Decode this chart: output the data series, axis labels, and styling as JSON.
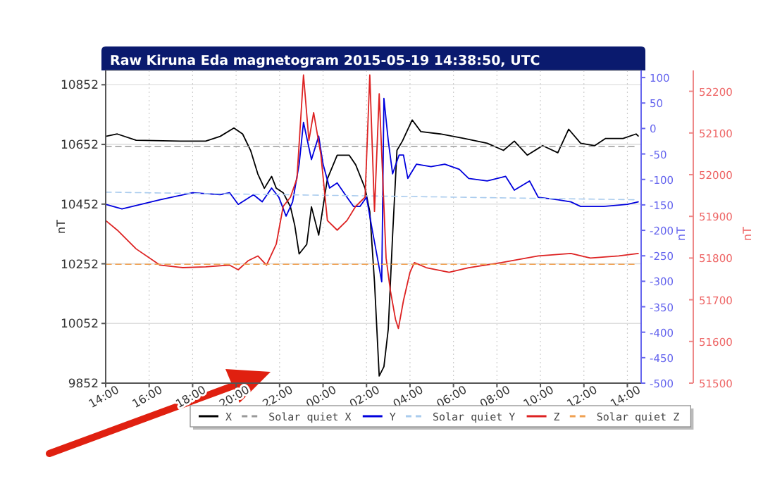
{
  "chart_data": {
    "type": "line",
    "title": "Raw Kiruna Eda magnetogram 2015-05-19 14:38:50, UTC",
    "ylabel": "nT",
    "y2label": "nT",
    "y3label": "nT",
    "xlim": [
      "2015-05-18T14:00",
      "2015-05-19T14:38"
    ],
    "xticks": [
      {
        "value": "2015-05-18T14:00",
        "label": "14:00"
      },
      {
        "value": "2015-05-18T16:00",
        "label": "16:00"
      },
      {
        "value": "2015-05-18T18:00",
        "label": "18:00"
      },
      {
        "value": "2015-05-18T20:00",
        "label": "20:00"
      },
      {
        "value": "2015-05-18T22:00",
        "label": "22:00"
      },
      {
        "value": "2015-05-19T00:00",
        "label": "00:00"
      },
      {
        "value": "2015-05-19T02:00",
        "label": "02:00"
      },
      {
        "value": "2015-05-19T04:00",
        "label": "04:00"
      },
      {
        "value": "2015-05-19T06:00",
        "label": "06:00"
      },
      {
        "value": "2015-05-19T08:00",
        "label": "08:00"
      },
      {
        "value": "2015-05-19T10:00",
        "label": "10:00"
      },
      {
        "value": "2015-05-19T12:00",
        "label": "12:00"
      },
      {
        "value": "2015-05-19T14:00",
        "label": "14:00"
      }
    ],
    "ylim": [
      9852,
      10900
    ],
    "yticks": [
      9852,
      10052,
      10252,
      10452,
      10652,
      10852
    ],
    "y2lim": [
      -500,
      114
    ],
    "y2ticks": [
      -500,
      -450,
      -400,
      -350,
      -300,
      -250,
      -200,
      -150,
      -100,
      -50,
      0,
      50,
      100
    ],
    "y3lim": [
      51500,
      52250
    ],
    "y3ticks": [
      51500,
      51600,
      51700,
      51800,
      51900,
      52000,
      52100,
      52200
    ],
    "grid": true,
    "legend": "bottom",
    "series": [
      {
        "name": "X",
        "color": "#000000",
        "line_style": "solid",
        "x": [
          "2015-05-18T14:00",
          "2015-05-18T14:32",
          "2015-05-18T15:24",
          "2015-05-18T17:33",
          "2015-05-18T18:36",
          "2015-05-18T19:16",
          "2015-05-18T19:54",
          "2015-05-18T20:18",
          "2015-05-18T20:40",
          "2015-05-18T21:00",
          "2015-05-18T21:18",
          "2015-05-18T21:38",
          "2015-05-18T21:51",
          "2015-05-18T22:10",
          "2015-05-18T22:30",
          "2015-05-18T22:42",
          "2015-05-18T22:54",
          "2015-05-18T23:15",
          "2015-05-18T23:28",
          "2015-05-18T23:48",
          "2015-05-19T00:12",
          "2015-05-19T00:39",
          "2015-05-19T01:12",
          "2015-05-19T01:30",
          "2015-05-19T01:56",
          "2015-05-19T02:09",
          "2015-05-19T02:22",
          "2015-05-19T02:35",
          "2015-05-19T02:48",
          "2015-05-19T03:00",
          "2015-05-19T03:12",
          "2015-05-19T03:24",
          "2015-05-19T03:39",
          "2015-05-19T04:06",
          "2015-05-19T04:30",
          "2015-05-19T05:24",
          "2015-05-19T06:30",
          "2015-05-19T07:33",
          "2015-05-19T08:18",
          "2015-05-19T08:48",
          "2015-05-19T09:24",
          "2015-05-19T10:06",
          "2015-05-19T10:48",
          "2015-05-19T11:18",
          "2015-05-19T11:51",
          "2015-05-19T12:30",
          "2015-05-19T13:00",
          "2015-05-19T13:48",
          "2015-05-19T14:24",
          "2015-05-19T14:30"
        ],
        "values": [
          10679,
          10687,
          10666,
          10663,
          10663,
          10679,
          10707,
          10687,
          10632,
          10553,
          10505,
          10545,
          10505,
          10490,
          10443,
          10380,
          10285,
          10317,
          10443,
          10348,
          10537,
          10616,
          10616,
          10584,
          10505,
          10427,
          10191,
          9876,
          9907,
          10033,
          10348,
          10632,
          10663,
          10734,
          10695,
          10687,
          10672,
          10656,
          10632,
          10663,
          10616,
          10648,
          10624,
          10703,
          10656,
          10648,
          10672,
          10672,
          10687,
          10680
        ]
      },
      {
        "name": "Solar quiet X",
        "color": "#999999",
        "line_style": "dashed",
        "x": [
          "2015-05-18T14:00",
          "2015-05-19T14:30"
        ],
        "values": [
          10645,
          10645
        ]
      },
      {
        "name": "Y",
        "color": "#0000dd",
        "axis": "y2",
        "line_style": "solid",
        "x": [
          "2015-05-18T14:00",
          "2015-05-18T14:45",
          "2015-05-18T16:30",
          "2015-05-18T18:00",
          "2015-05-18T19:16",
          "2015-05-18T19:42",
          "2015-05-18T20:06",
          "2015-05-18T20:48",
          "2015-05-18T21:12",
          "2015-05-18T21:38",
          "2015-05-18T21:58",
          "2015-05-18T22:18",
          "2015-05-18T22:36",
          "2015-05-18T22:54",
          "2015-05-18T23:06",
          "2015-05-18T23:28",
          "2015-05-18T23:48",
          "2015-05-19T00:00",
          "2015-05-19T00:18",
          "2015-05-19T00:39",
          "2015-05-19T01:06",
          "2015-05-19T01:24",
          "2015-05-19T01:42",
          "2015-05-19T02:00",
          "2015-05-19T02:16",
          "2015-05-19T02:28",
          "2015-05-19T02:42",
          "2015-05-19T02:48",
          "2015-05-19T03:00",
          "2015-05-19T03:12",
          "2015-05-19T03:30",
          "2015-05-19T03:42",
          "2015-05-19T03:54",
          "2015-05-19T04:18",
          "2015-05-19T04:58",
          "2015-05-19T05:36",
          "2015-05-19T06:16",
          "2015-05-19T06:42",
          "2015-05-19T07:33",
          "2015-05-19T08:24",
          "2015-05-19T08:48",
          "2015-05-19T09:30",
          "2015-05-19T09:54",
          "2015-05-19T10:48",
          "2015-05-19T11:24",
          "2015-05-19T11:51",
          "2015-05-19T12:54",
          "2015-05-19T14:00",
          "2015-05-19T14:30"
        ],
        "values": [
          -149,
          -158,
          -140,
          -126,
          -130,
          -126,
          -149,
          -130,
          -144,
          -117,
          -135,
          -172,
          -144,
          -70,
          12,
          -61,
          -15,
          -70,
          -117,
          -107,
          -135,
          -153,
          -153,
          -135,
          -200,
          -246,
          -301,
          59,
          -24,
          -89,
          -52,
          -52,
          -98,
          -70,
          -75,
          -70,
          -80,
          -98,
          -103,
          -94,
          -121,
          -103,
          -135,
          -140,
          -144,
          -153,
          -153,
          -149,
          -144
        ]
      },
      {
        "name": "Solar quiet Y",
        "color": "#aaccee",
        "axis": "y2",
        "line_style": "dashed",
        "x": [
          "2015-05-18T14:00",
          "2015-05-19T14:30"
        ],
        "values": [
          -125,
          -140
        ]
      },
      {
        "name": "Z",
        "color": "#dd2222",
        "axis": "y3",
        "line_style": "solid",
        "x": [
          "2015-05-18T14:00",
          "2015-05-18T14:32",
          "2015-05-18T15:24",
          "2015-05-18T16:30",
          "2015-05-18T17:33",
          "2015-05-18T18:36",
          "2015-05-18T19:42",
          "2015-05-18T20:06",
          "2015-05-18T20:34",
          "2015-05-18T21:00",
          "2015-05-18T21:24",
          "2015-05-18T21:51",
          "2015-05-18T22:10",
          "2015-05-18T22:30",
          "2015-05-18T22:48",
          "2015-05-18T23:06",
          "2015-05-18T23:21",
          "2015-05-18T23:34",
          "2015-05-18T23:54",
          "2015-05-19T00:12",
          "2015-05-19T00:39",
          "2015-05-19T01:06",
          "2015-05-19T01:30",
          "2015-05-19T01:56",
          "2015-05-19T02:09",
          "2015-05-19T02:22",
          "2015-05-19T02:35",
          "2015-05-19T02:54",
          "2015-05-19T03:06",
          "2015-05-19T03:20",
          "2015-05-19T03:28",
          "2015-05-19T03:42",
          "2015-05-19T04:00",
          "2015-05-19T04:12",
          "2015-05-19T04:45",
          "2015-05-19T05:48",
          "2015-05-19T06:42",
          "2015-05-19T08:12",
          "2015-05-19T09:54",
          "2015-05-19T11:24",
          "2015-05-19T12:18",
          "2015-05-19T13:36",
          "2015-05-19T14:30"
        ],
        "values": [
          51890,
          51867,
          51822,
          51783,
          51777,
          51779,
          51783,
          51772,
          51794,
          51805,
          51783,
          51834,
          51924,
          51946,
          51991,
          52239,
          52082,
          52149,
          52048,
          51890,
          51867,
          51890,
          51924,
          51946,
          52239,
          51912,
          52194,
          51800,
          51721,
          51653,
          51631,
          51698,
          51766,
          51789,
          51777,
          51766,
          51777,
          51789,
          51805,
          51811,
          51800,
          51805,
          51811
        ]
      },
      {
        "name": "Solar quiet Z",
        "color": "#f0a050",
        "axis": "y3",
        "line_style": "dashed",
        "x": [
          "2015-05-18T14:00",
          "2015-05-19T14:30"
        ],
        "values": [
          51785,
          51785
        ]
      }
    ]
  }
}
